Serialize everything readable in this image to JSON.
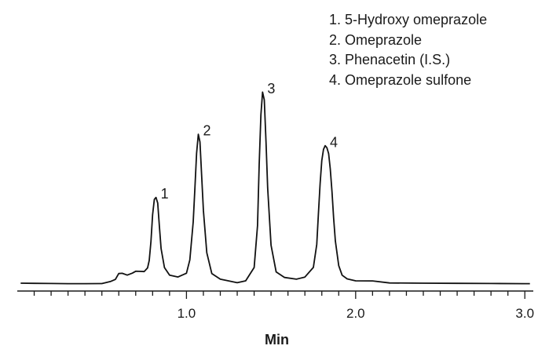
{
  "chart_data": {
    "type": "line",
    "title": "",
    "xlabel": "Min",
    "ylabel": "",
    "xlim": [
      0,
      3.05
    ],
    "ylim": [
      0,
      1.0
    ],
    "grid": false,
    "legend_placement": "top-right",
    "x_ticks": [
      {
        "value": 1.0,
        "label": "1.0"
      },
      {
        "value": 2.0,
        "label": "2.0"
      },
      {
        "value": 3.0,
        "label": "3.0"
      }
    ],
    "minor_tick_step": 0.1,
    "legend": [
      "1. 5-Hydroxy omeprazole",
      "2. Omeprazole",
      "3. Phenacetin (I.S.)",
      "4. Omeprazole sulfone"
    ],
    "peaks": [
      {
        "label": "1",
        "name": "5-Hydroxy omeprazole",
        "x": 0.82,
        "y": 0.45
      },
      {
        "label": "2",
        "name": "Omeprazole",
        "x": 1.07,
        "y": 0.78
      },
      {
        "label": "3",
        "name": "Phenacetin (I.S.)",
        "x": 1.45,
        "y": 1.0
      },
      {
        "label": "4",
        "name": "Omeprazole sulfone",
        "x": 1.82,
        "y": 0.72
      }
    ],
    "series": [
      {
        "x": [
          0.02,
          0.1,
          0.2,
          0.3,
          0.4,
          0.5,
          0.55,
          0.58,
          0.6,
          0.62,
          0.65,
          0.68,
          0.7,
          0.72,
          0.75,
          0.77,
          0.78,
          0.79,
          0.8,
          0.81,
          0.82,
          0.83,
          0.84,
          0.85,
          0.87,
          0.9,
          0.95,
          1.0,
          1.02,
          1.04,
          1.05,
          1.06,
          1.07,
          1.08,
          1.09,
          1.1,
          1.12,
          1.15,
          1.2,
          1.25,
          1.3,
          1.35,
          1.4,
          1.42,
          1.43,
          1.44,
          1.45,
          1.46,
          1.47,
          1.48,
          1.5,
          1.53,
          1.58,
          1.65,
          1.7,
          1.75,
          1.77,
          1.78,
          1.79,
          1.8,
          1.81,
          1.82,
          1.83,
          1.84,
          1.85,
          1.86,
          1.87,
          1.88,
          1.9,
          1.92,
          1.95,
          2.0,
          2.1,
          2.2,
          2.4,
          2.6,
          2.8,
          3.0,
          3.03
        ],
        "y": [
          0.0,
          0.0,
          0.0,
          0.0,
          0.0,
          0.0,
          0.01,
          0.02,
          0.05,
          0.05,
          0.04,
          0.05,
          0.06,
          0.06,
          0.06,
          0.08,
          0.12,
          0.22,
          0.36,
          0.44,
          0.45,
          0.42,
          0.3,
          0.18,
          0.08,
          0.04,
          0.03,
          0.05,
          0.12,
          0.32,
          0.5,
          0.68,
          0.78,
          0.74,
          0.56,
          0.38,
          0.16,
          0.05,
          0.02,
          0.01,
          0.0,
          0.01,
          0.08,
          0.3,
          0.62,
          0.88,
          1.0,
          0.96,
          0.74,
          0.5,
          0.2,
          0.06,
          0.03,
          0.02,
          0.03,
          0.08,
          0.2,
          0.36,
          0.52,
          0.64,
          0.7,
          0.72,
          0.71,
          0.68,
          0.6,
          0.48,
          0.34,
          0.22,
          0.09,
          0.04,
          0.02,
          0.01,
          0.01,
          0.0,
          0.0,
          0.0,
          0.0,
          0.0,
          0.0
        ]
      }
    ]
  }
}
